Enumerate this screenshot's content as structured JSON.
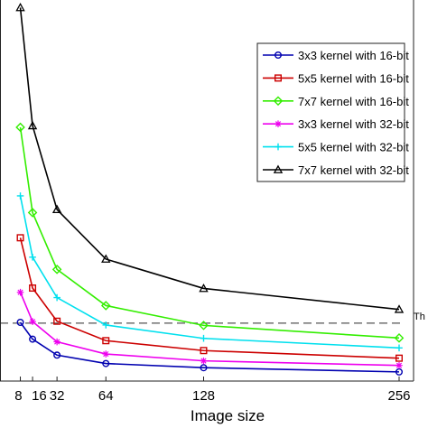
{
  "chart_data": {
    "type": "line",
    "xlabel": "Image size",
    "ylabel": "",
    "title": "",
    "x": [
      8,
      16,
      32,
      64,
      128,
      256
    ],
    "x_tick_labels": [
      "8",
      "16",
      "32",
      "64",
      "128",
      "256"
    ],
    "ylim": [
      0,
      100
    ],
    "grid": false,
    "legend_position": "top-right",
    "threshold": {
      "value": 15.2,
      "label": "Th",
      "style": "dashed",
      "color": "#555555"
    },
    "series": [
      {
        "name": "3x3 kernel with 16-bit",
        "color": "#0000b0",
        "marker": "circle",
        "values": [
          15.4,
          11.0,
          6.8,
          4.6,
          3.5,
          2.4
        ]
      },
      {
        "name": "5x5 kernel with 16-bit",
        "color": "#cc0000",
        "marker": "square",
        "values": [
          37.6,
          24.4,
          15.7,
          10.6,
          8.0,
          6.0
        ]
      },
      {
        "name": "7x7 kernel with 16-bit",
        "color": "#33ee00",
        "marker": "diamond",
        "values": [
          66.6,
          44.2,
          29.3,
          19.8,
          14.6,
          11.3
        ]
      },
      {
        "name": "3x3 kernel with 32-bit",
        "color": "#ee00ee",
        "marker": "asterisk",
        "values": [
          23.3,
          15.6,
          10.3,
          7.1,
          5.3,
          4.1
        ]
      },
      {
        "name": "5x5 kernel with 32-bit",
        "color": "#00e0ee",
        "marker": "plus",
        "values": [
          48.6,
          32.5,
          21.9,
          14.7,
          11.2,
          8.7
        ]
      },
      {
        "name": "7x7 kernel with 32-bit",
        "color": "#000000",
        "marker": "triangle",
        "values": [
          98.0,
          67.0,
          45.0,
          32.0,
          24.3,
          18.8
        ]
      }
    ]
  }
}
